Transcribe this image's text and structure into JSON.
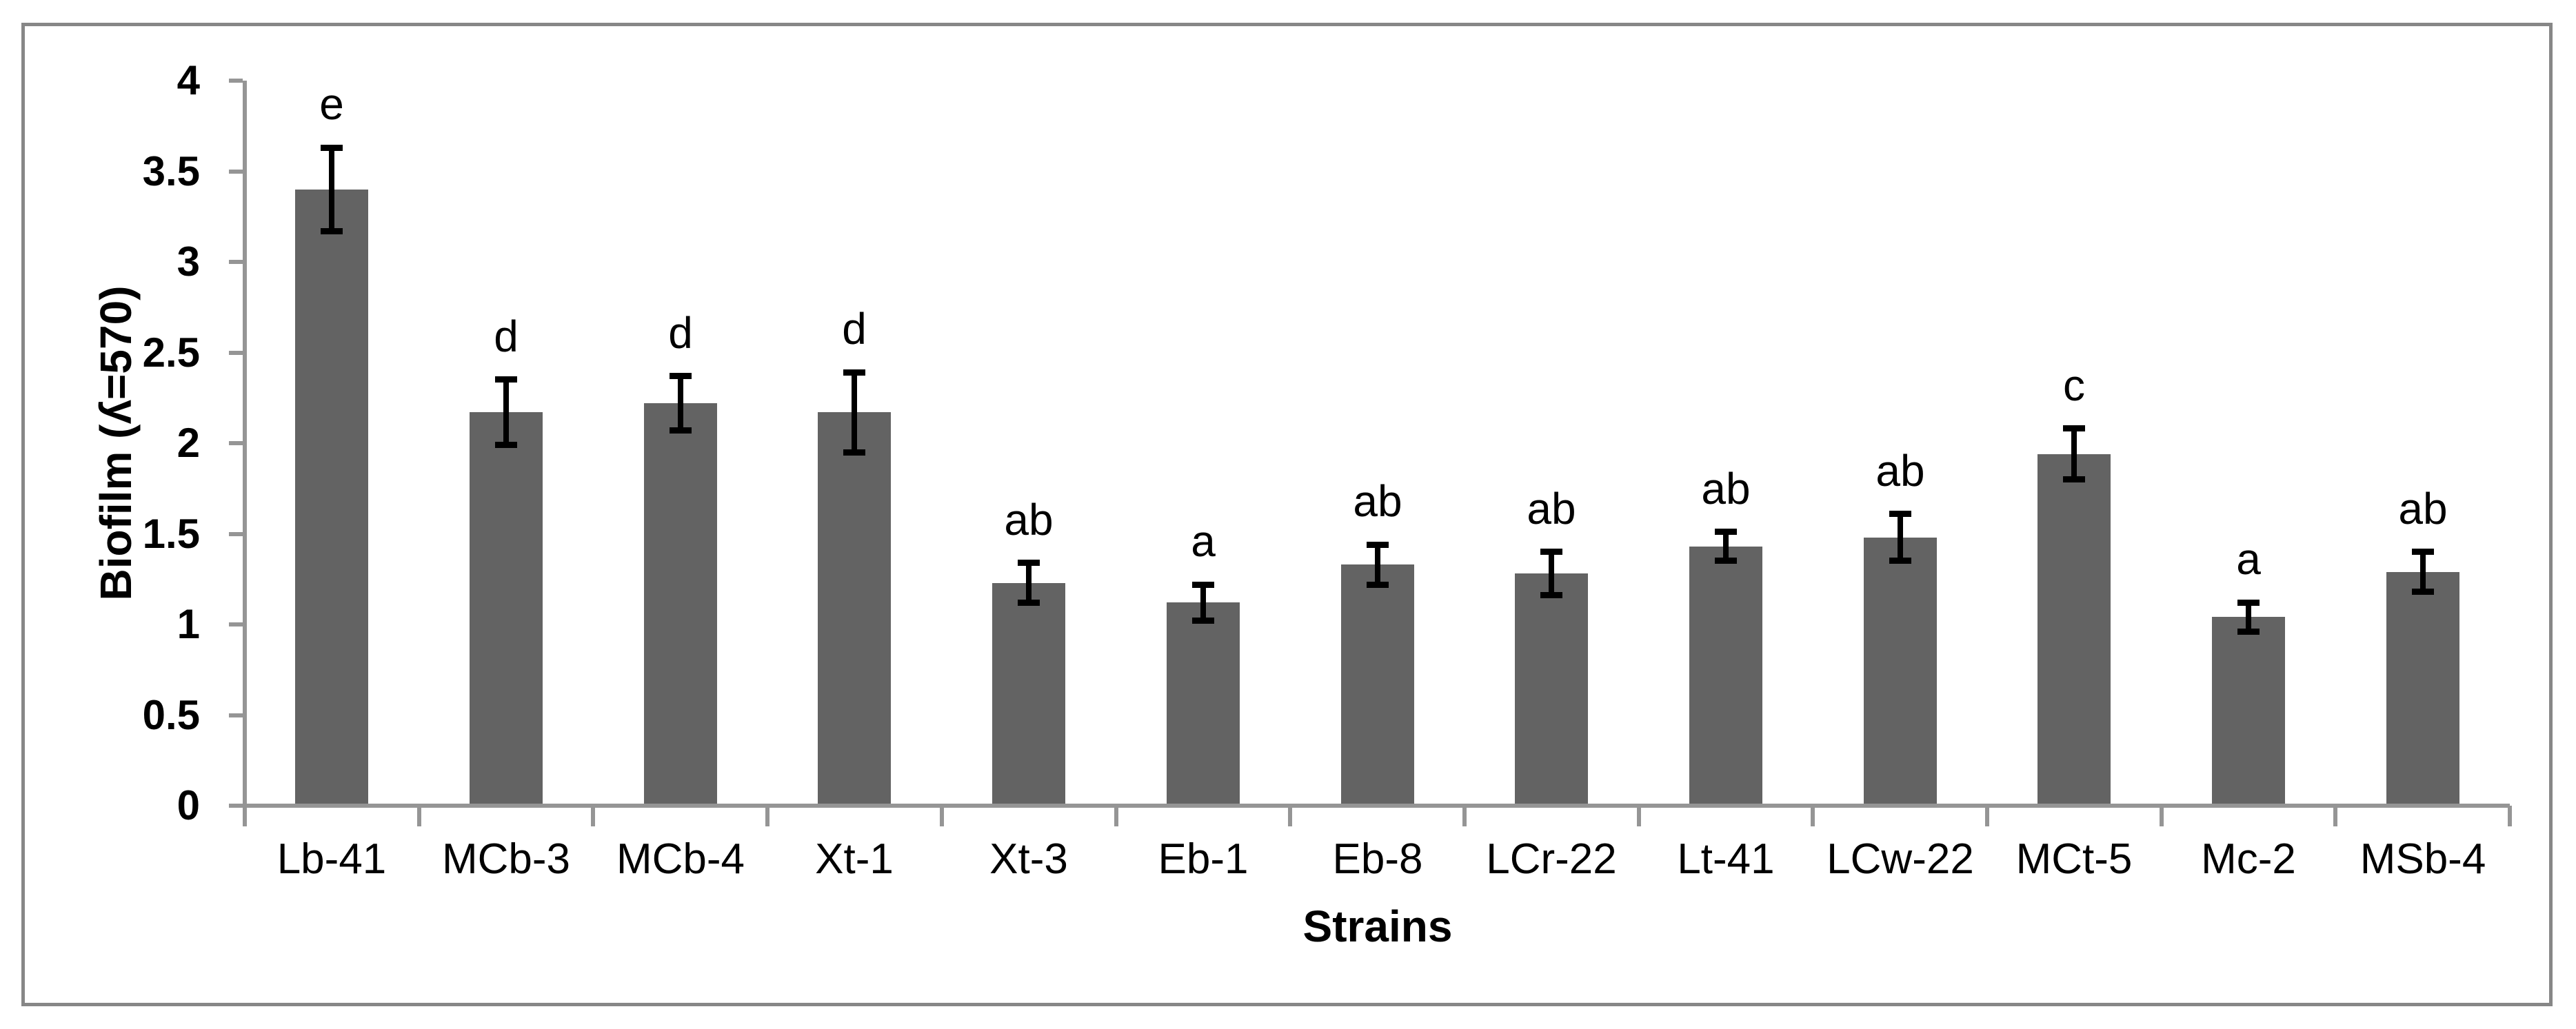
{
  "figure": {
    "kind": "statistical-bar-chart",
    "background": "#ffffff"
  },
  "chart_data": {
    "type": "bar",
    "title": "",
    "xlabel": "Strains",
    "ylabel": "Biofilm (ʎ=570)",
    "categories": [
      "Lb-41",
      "MCb-3",
      "MCb-4",
      "Xt-1",
      "Xt-3",
      "Eb-1",
      "Eb-8",
      "LCr-22",
      "Lt-41",
      "LCw-22",
      "MCt-5",
      "Mc-2",
      "MSb-4"
    ],
    "values": [
      3.4,
      2.17,
      2.22,
      2.17,
      1.23,
      1.12,
      1.33,
      1.28,
      1.43,
      1.48,
      1.94,
      1.04,
      1.29
    ],
    "errors": [
      0.23,
      0.18,
      0.15,
      0.22,
      0.11,
      0.1,
      0.11,
      0.12,
      0.08,
      0.13,
      0.14,
      0.08,
      0.11
    ],
    "significance_letters": [
      "e",
      "d",
      "d",
      "d",
      "ab",
      "a",
      "ab",
      "ab",
      "ab",
      "ab",
      "c",
      "a",
      "ab"
    ],
    "ylim": [
      0,
      4
    ],
    "ytick_step": 0.5,
    "ytick_labels": [
      "0",
      "0.5",
      "1",
      "1.5",
      "2",
      "2.5",
      "3",
      "3.5",
      "4"
    ],
    "grid": false,
    "legend": "none",
    "colors": {
      "bar": "#636363",
      "error_bar": "#000000",
      "axis": "#959595",
      "figure_border": "#878787",
      "text": "#000000",
      "background": "#ffffff"
    }
  }
}
